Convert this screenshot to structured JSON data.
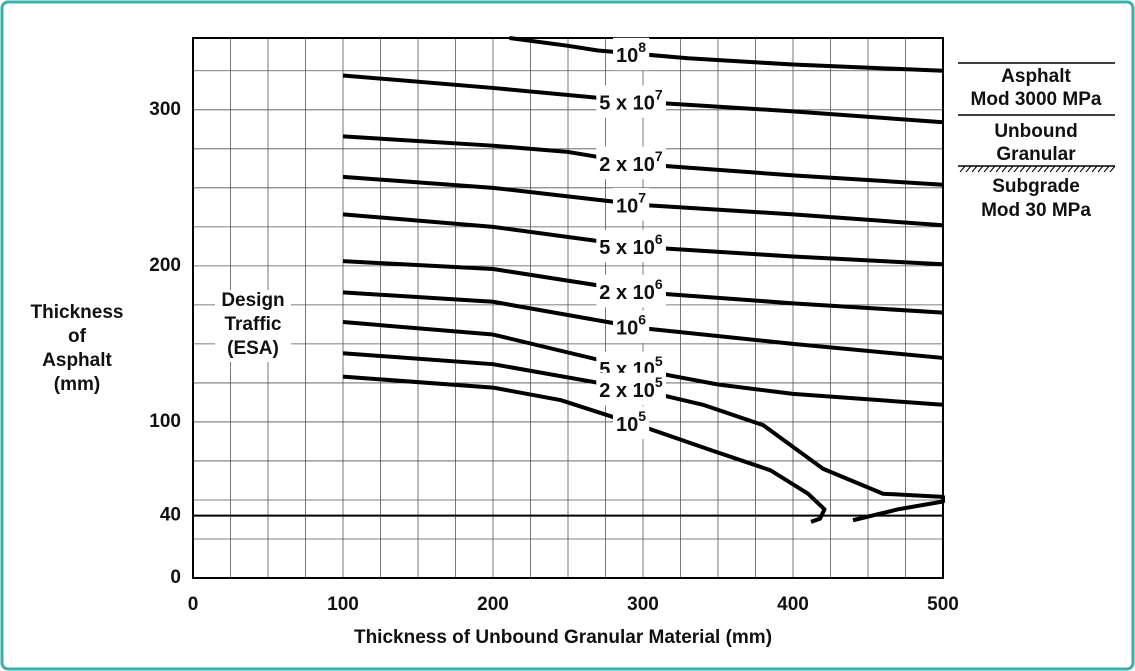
{
  "chart_data": {
    "type": "line",
    "xlabel": "Thickness of Unbound Granular Material (mm)",
    "ylabel": [
      "Thickness",
      "of",
      "Asphalt",
      "(mm)"
    ],
    "annotation": [
      "Design",
      "Traffic",
      "(ESA)"
    ],
    "layers": [
      [
        "Asphalt",
        "Mod 3000 MPa"
      ],
      [
        "Unbound",
        "Granular"
      ],
      [
        "Subgrade",
        "Mod 30 MPa"
      ]
    ],
    "xlim": [
      0,
      500
    ],
    "ylim": [
      0,
      346
    ],
    "xticks": [
      0,
      100,
      200,
      300,
      400,
      500
    ],
    "yticks": [
      0,
      40,
      100,
      200,
      300
    ],
    "xgrid": [
      25,
      50,
      75,
      125,
      150,
      175,
      225,
      250,
      275,
      325,
      350,
      375,
      425,
      450,
      475
    ],
    "ygrid": [
      25,
      50,
      75,
      125,
      150,
      175,
      225,
      250,
      275,
      325
    ],
    "thick_line_y": 40,
    "grid": true,
    "color": "#000000",
    "series": [
      {
        "label": {
          "text": "10",
          "sup": "8"
        },
        "x": [
          211,
          250,
          270,
          330,
          400,
          500
        ],
        "values": [
          346,
          341,
          338,
          333,
          329,
          325
        ]
      },
      {
        "label": {
          "text": "5 x 10",
          "sup": "7"
        },
        "x": [
          100,
          200,
          300,
          400,
          500
        ],
        "values": [
          322,
          314,
          305,
          299,
          292
        ]
      },
      {
        "label": {
          "text": "2 x 10",
          "sup": "7"
        },
        "x": [
          100,
          200,
          250,
          300,
          400,
          500
        ],
        "values": [
          283,
          277,
          273,
          265,
          258,
          252
        ]
      },
      {
        "label": {
          "text": "10",
          "sup": "7"
        },
        "x": [
          100,
          200,
          300,
          400,
          500
        ],
        "values": [
          257,
          250,
          239,
          233,
          226
        ]
      },
      {
        "label": {
          "text": "5 x 10",
          "sup": "6"
        },
        "x": [
          100,
          200,
          300,
          400,
          500
        ],
        "values": [
          233,
          225,
          212,
          206,
          201
        ]
      },
      {
        "label": {
          "text": "2 x 10",
          "sup": "6"
        },
        "x": [
          100,
          200,
          300,
          400,
          500
        ],
        "values": [
          203,
          198,
          183,
          176,
          170
        ]
      },
      {
        "label": {
          "text": "10",
          "sup": "6"
        },
        "x": [
          100,
          200,
          300,
          400,
          500
        ],
        "values": [
          183,
          177,
          160,
          150,
          141
        ]
      },
      {
        "label": {
          "text": "5 x 10",
          "sup": "5"
        },
        "x": [
          100,
          200,
          300,
          350,
          400,
          500
        ],
        "values": [
          164,
          156,
          133,
          124,
          118,
          111
        ]
      },
      {
        "label": {
          "text": "2 x 10",
          "sup": "5"
        },
        "x": [
          100,
          200,
          300,
          340,
          380,
          420,
          460,
          500,
          500,
          470,
          440
        ],
        "values": [
          144,
          137,
          120,
          111,
          98,
          70,
          54,
          52,
          49,
          44,
          37
        ]
      },
      {
        "label": {
          "text": "10",
          "sup": "5"
        },
        "x": [
          100,
          200,
          245,
          300,
          345,
          385,
          410,
          421,
          418,
          412
        ],
        "values": [
          129,
          122,
          114,
          97,
          82,
          69,
          54,
          44,
          38,
          36
        ]
      }
    ]
  }
}
